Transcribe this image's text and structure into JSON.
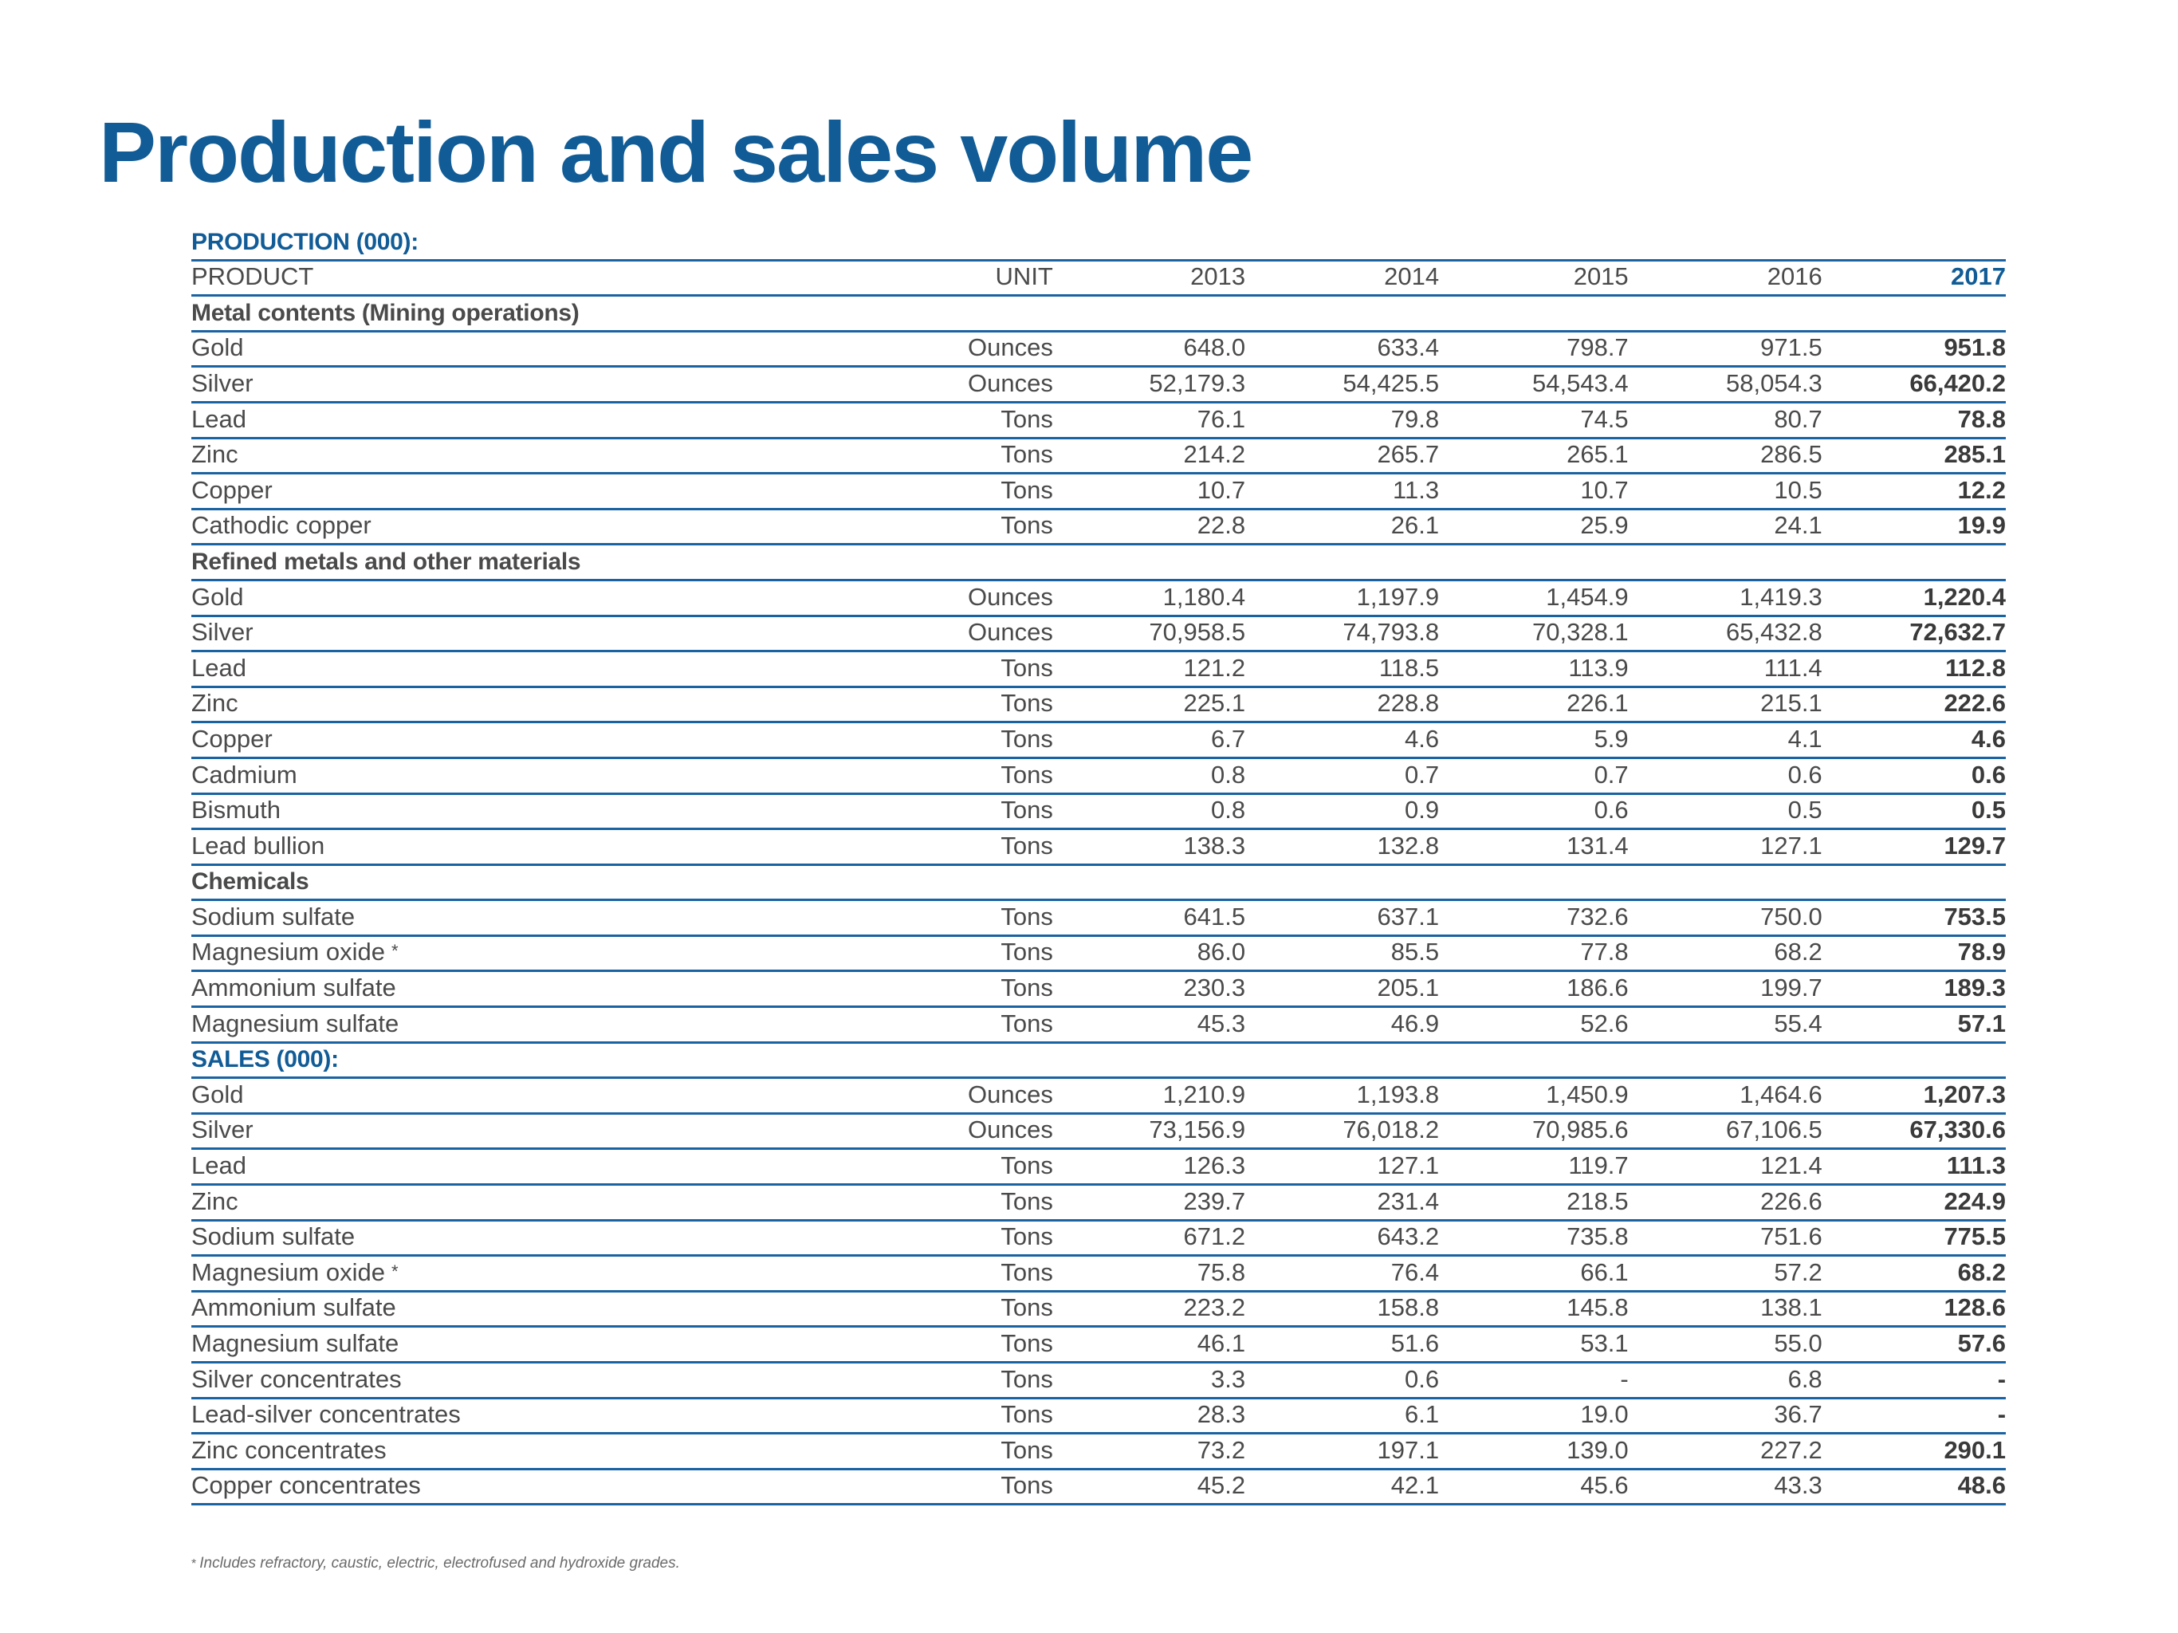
{
  "title": "Production and sales volume",
  "colors": {
    "brand_blue": "#115c96",
    "rule_blue": "#1a63a2",
    "text_gray": "#4a4a4a"
  },
  "production_label": "PRODUCTION (000):",
  "header": {
    "product": "PRODUCT",
    "unit": "UNIT",
    "years": [
      "2013",
      "2014",
      "2015",
      "2016",
      "2017"
    ]
  },
  "groups": {
    "metal_contents": "Metal contents (Mining operations)",
    "refined": "Refined metals and other materials",
    "chemicals": "Chemicals"
  },
  "sales_label": "SALES (000):",
  "star": "*",
  "rows": {
    "mining": [
      {
        "product": "Gold",
        "unit": "Ounces",
        "values": [
          "648.0",
          "633.4",
          "798.7",
          "971.5",
          "951.8"
        ]
      },
      {
        "product": "Silver",
        "unit": "Ounces",
        "values": [
          "52,179.3",
          "54,425.5",
          "54,543.4",
          "58,054.3",
          "66,420.2"
        ]
      },
      {
        "product": "Lead",
        "unit": "Tons",
        "values": [
          "76.1",
          "79.8",
          "74.5",
          "80.7",
          "78.8"
        ]
      },
      {
        "product": "Zinc",
        "unit": "Tons",
        "values": [
          "214.2",
          "265.7",
          "265.1",
          "286.5",
          "285.1"
        ]
      },
      {
        "product": "Copper",
        "unit": "Tons",
        "values": [
          "10.7",
          "11.3",
          "10.7",
          "10.5",
          "12.2"
        ]
      },
      {
        "product": "Cathodic copper",
        "unit": "Tons",
        "values": [
          "22.8",
          "26.1",
          "25.9",
          "24.1",
          "19.9"
        ]
      }
    ],
    "refined": [
      {
        "product": "Gold",
        "unit": "Ounces",
        "values": [
          "1,180.4",
          "1,197.9",
          "1,454.9",
          "1,419.3",
          "1,220.4"
        ]
      },
      {
        "product": "Silver",
        "unit": "Ounces",
        "values": [
          "70,958.5",
          "74,793.8",
          "70,328.1",
          "65,432.8",
          "72,632.7"
        ]
      },
      {
        "product": "Lead",
        "unit": "Tons",
        "values": [
          "121.2",
          "118.5",
          "113.9",
          "111.4",
          "112.8"
        ]
      },
      {
        "product": "Zinc",
        "unit": "Tons",
        "values": [
          "225.1",
          "228.8",
          "226.1",
          "215.1",
          "222.6"
        ]
      },
      {
        "product": "Copper",
        "unit": "Tons",
        "values": [
          "6.7",
          "4.6",
          "5.9",
          "4.1",
          "4.6"
        ]
      },
      {
        "product": "Cadmium",
        "unit": "Tons",
        "values": [
          "0.8",
          "0.7",
          "0.7",
          "0.6",
          "0.6"
        ]
      },
      {
        "product": "Bismuth",
        "unit": "Tons",
        "values": [
          "0.8",
          "0.9",
          "0.6",
          "0.5",
          "0.5"
        ]
      },
      {
        "product": "Lead bullion",
        "unit": "Tons",
        "values": [
          "138.3",
          "132.8",
          "131.4",
          "127.1",
          "129.7"
        ]
      }
    ],
    "chemicals": [
      {
        "product": "Sodium sulfate",
        "unit": "Tons",
        "values": [
          "641.5",
          "637.1",
          "732.6",
          "750.0",
          "753.5"
        ]
      },
      {
        "product": "Magnesium oxide",
        "unit": "Tons",
        "values": [
          "86.0",
          "85.5",
          "77.8",
          "68.2",
          "78.9"
        ]
      },
      {
        "product": "Ammonium sulfate",
        "unit": "Tons",
        "values": [
          "230.3",
          "205.1",
          "186.6",
          "199.7",
          "189.3"
        ]
      },
      {
        "product": "Magnesium sulfate",
        "unit": "Tons",
        "values": [
          "45.3",
          "46.9",
          "52.6",
          "55.4",
          "57.1"
        ]
      }
    ],
    "sales": [
      {
        "product": "Gold",
        "unit": "Ounces",
        "values": [
          "1,210.9",
          "1,193.8",
          "1,450.9",
          "1,464.6",
          "1,207.3"
        ]
      },
      {
        "product": "Silver",
        "unit": "Ounces",
        "values": [
          "73,156.9",
          "76,018.2",
          "70,985.6",
          "67,106.5",
          "67,330.6"
        ]
      },
      {
        "product": "Lead",
        "unit": "Tons",
        "values": [
          "126.3",
          "127.1",
          "119.7",
          "121.4",
          "111.3"
        ]
      },
      {
        "product": "Zinc",
        "unit": "Tons",
        "values": [
          "239.7",
          "231.4",
          "218.5",
          "226.6",
          "224.9"
        ]
      },
      {
        "product": "Sodium sulfate",
        "unit": "Tons",
        "values": [
          "671.2",
          "643.2",
          "735.8",
          "751.6",
          "775.5"
        ]
      },
      {
        "product": "Magnesium oxide",
        "unit": "Tons",
        "values": [
          "75.8",
          "76.4",
          "66.1",
          "57.2",
          "68.2"
        ]
      },
      {
        "product": "Ammonium sulfate",
        "unit": "Tons",
        "values": [
          "223.2",
          "158.8",
          "145.8",
          "138.1",
          "128.6"
        ]
      },
      {
        "product": "Magnesium sulfate",
        "unit": "Tons",
        "values": [
          "46.1",
          "51.6",
          "53.1",
          "55.0",
          "57.6"
        ]
      },
      {
        "product": "Silver concentrates",
        "unit": "Tons",
        "values": [
          "3.3",
          "0.6",
          "-",
          "6.8",
          "-"
        ]
      },
      {
        "product": "Lead-silver concentrates",
        "unit": "Tons",
        "values": [
          "28.3",
          "6.1",
          "19.0",
          "36.7",
          "-"
        ]
      },
      {
        "product": "Zinc concentrates",
        "unit": "Tons",
        "values": [
          "73.2",
          "197.1",
          "139.0",
          "227.2",
          "290.1"
        ]
      },
      {
        "product": "Copper concentrates",
        "unit": "Tons",
        "values": [
          "45.2",
          "42.1",
          "45.6",
          "43.3",
          "48.6"
        ]
      }
    ]
  },
  "footnote": "Includes refractory, caustic, electric, electrofused and hydroxide grades."
}
